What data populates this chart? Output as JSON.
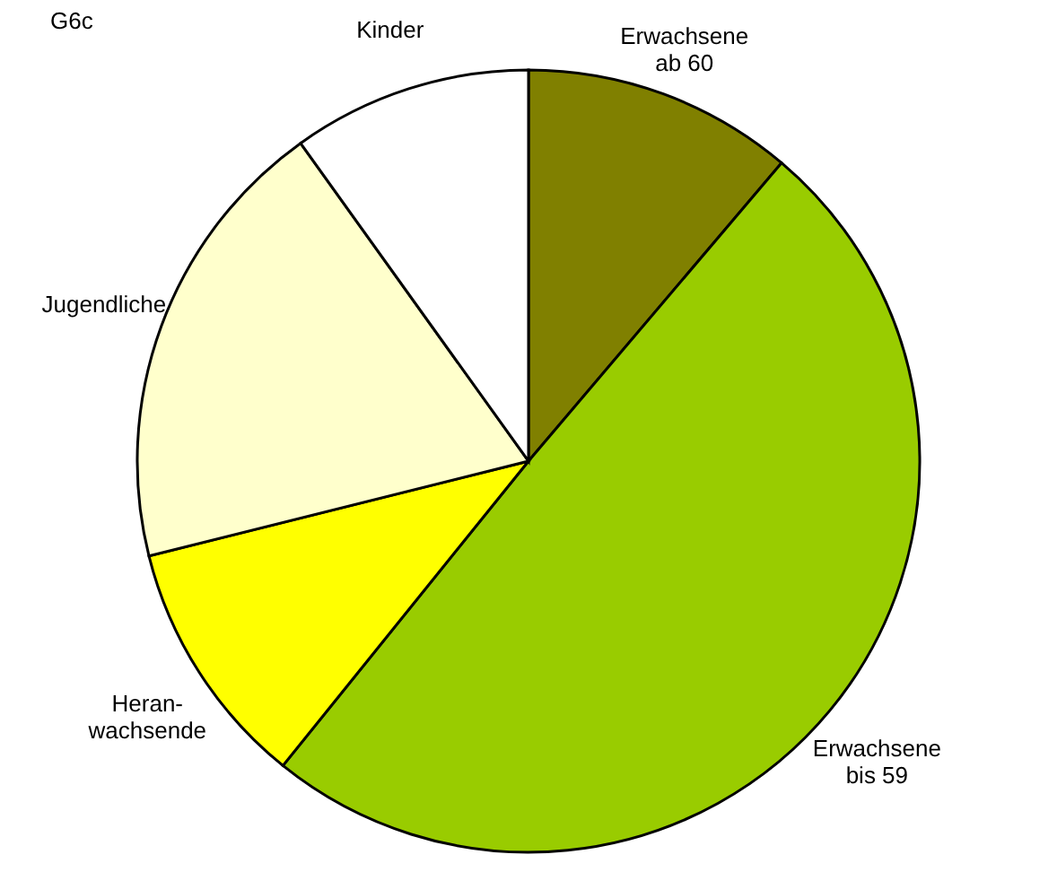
{
  "chart_data": {
    "type": "pie",
    "title": "G6c",
    "categories": [
      "Erwachsene\nab 60",
      "Erwachsene\nbis 59",
      "Heran-\nwachsende",
      "Jugendliche",
      "Kinder"
    ],
    "values": [
      11.2,
      49.6,
      10.3,
      19.0,
      9.9
    ],
    "colors": [
      "#808000",
      "#99cc00",
      "#ffff00",
      "#ffffcc",
      "#ffffff"
    ],
    "legend": false
  }
}
